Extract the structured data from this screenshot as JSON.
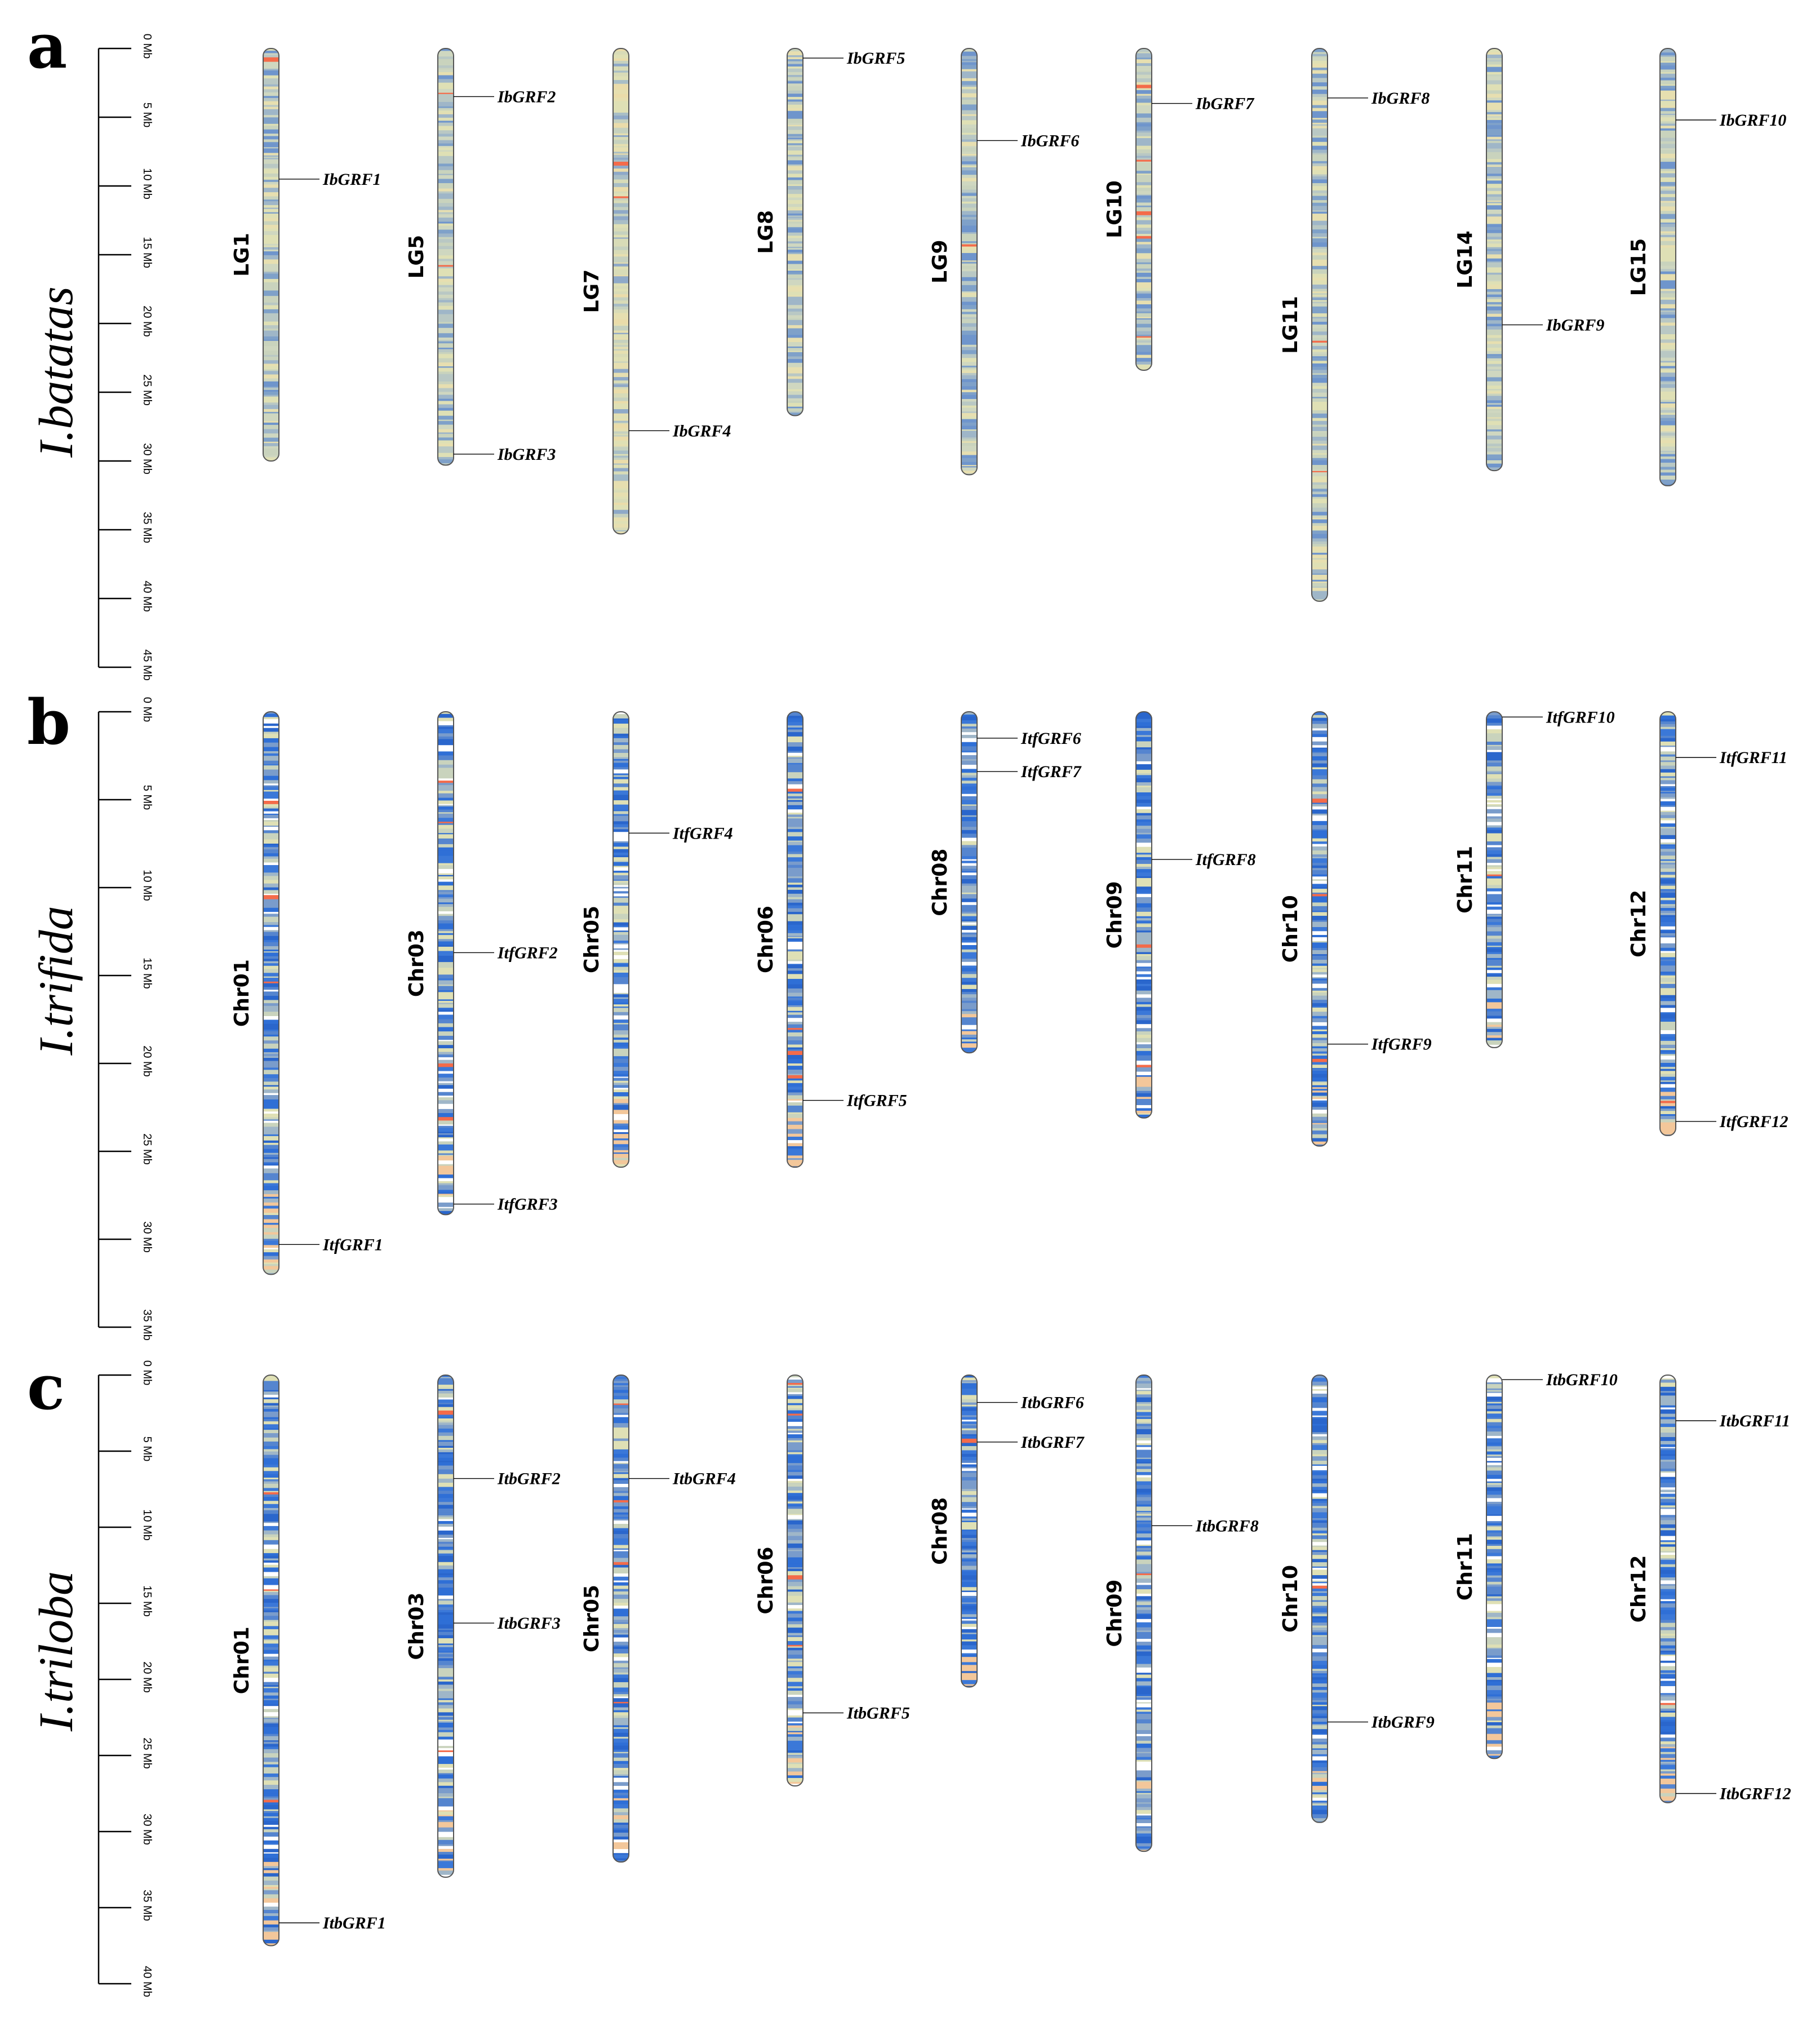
{
  "colors": {
    "low": "#2f6fd6",
    "mid": "#dfe0b5",
    "high": "#f46b4a",
    "outline": "#555555",
    "axis": "#000000"
  },
  "panels": [
    {
      "letter": "a",
      "species": "I.batatas",
      "max_mb": 45,
      "ticks": [
        "0 Mb",
        "5 Mb",
        "10 Mb",
        "15 Mb",
        "20 Mb",
        "25 Mb",
        "30 Mb",
        "35 Mb",
        "40 Mb",
        "45 Mb"
      ],
      "chromosomes": [
        {
          "name": "LG1",
          "length_mb": 30.0,
          "tone": "mixed",
          "genes": [
            {
              "name": "IbGRF1",
              "pos_mb": 9.5
            }
          ]
        },
        {
          "name": "LG5",
          "length_mb": 30.3,
          "tone": "mixed",
          "genes": [
            {
              "name": "IbGRF2",
              "pos_mb": 3.5
            },
            {
              "name": "IbGRF3",
              "pos_mb": 29.5
            }
          ]
        },
        {
          "name": "LG7",
          "length_mb": 35.3,
          "tone": "light",
          "genes": [
            {
              "name": "IbGRF4",
              "pos_mb": 27.8
            }
          ]
        },
        {
          "name": "LG8",
          "length_mb": 26.7,
          "tone": "mixed",
          "genes": [
            {
              "name": "IbGRF5",
              "pos_mb": 0.7
            }
          ]
        },
        {
          "name": "LG9",
          "length_mb": 31.0,
          "tone": "mixed",
          "genes": [
            {
              "name": "IbGRF6",
              "pos_mb": 6.7
            }
          ]
        },
        {
          "name": "LG10",
          "length_mb": 23.4,
          "tone": "mixed",
          "genes": [
            {
              "name": "IbGRF7",
              "pos_mb": 4.0
            }
          ]
        },
        {
          "name": "LG11",
          "length_mb": 40.2,
          "tone": "mixed",
          "genes": [
            {
              "name": "IbGRF8",
              "pos_mb": 3.6
            }
          ]
        },
        {
          "name": "LG14",
          "length_mb": 30.7,
          "tone": "mixed",
          "genes": [
            {
              "name": "IbGRF9",
              "pos_mb": 20.1
            }
          ]
        },
        {
          "name": "LG15",
          "length_mb": 31.8,
          "tone": "mixed",
          "genes": [
            {
              "name": "IbGRF10",
              "pos_mb": 5.2
            }
          ]
        }
      ]
    },
    {
      "letter": "b",
      "species": "I.trifida",
      "max_mb": 35,
      "ticks": [
        "0 Mb",
        "5 Mb",
        "10 Mb",
        "15 Mb",
        "20 Mb",
        "25 Mb",
        "30 Mb",
        "35 Mb"
      ],
      "chromosomes": [
        {
          "name": "Chr01",
          "length_mb": 32.0,
          "tone": "blue",
          "genes": [
            {
              "name": "ItfGRF1",
              "pos_mb": 30.3
            }
          ]
        },
        {
          "name": "Chr03",
          "length_mb": 28.6,
          "tone": "blue",
          "genes": [
            {
              "name": "ItfGRF2",
              "pos_mb": 13.7
            },
            {
              "name": "ItfGRF3",
              "pos_mb": 28.0
            }
          ]
        },
        {
          "name": "Chr05",
          "length_mb": 25.9,
          "tone": "blue",
          "genes": [
            {
              "name": "ItfGRF4",
              "pos_mb": 6.9
            }
          ]
        },
        {
          "name": "Chr06",
          "length_mb": 25.9,
          "tone": "blue",
          "genes": [
            {
              "name": "ItfGRF5",
              "pos_mb": 22.1
            }
          ]
        },
        {
          "name": "Chr08",
          "length_mb": 19.4,
          "tone": "blue",
          "genes": [
            {
              "name": "ItfGRF6",
              "pos_mb": 1.5
            },
            {
              "name": "ItfGRF7",
              "pos_mb": 3.4
            }
          ]
        },
        {
          "name": "Chr09",
          "length_mb": 23.1,
          "tone": "blue",
          "genes": [
            {
              "name": "ItfGRF8",
              "pos_mb": 8.4
            }
          ]
        },
        {
          "name": "Chr10",
          "length_mb": 24.7,
          "tone": "blue",
          "genes": [
            {
              "name": "ItfGRF9",
              "pos_mb": 18.9
            }
          ]
        },
        {
          "name": "Chr11",
          "length_mb": 19.1,
          "tone": "blue",
          "genes": [
            {
              "name": "ItfGRF10",
              "pos_mb": 0.3
            }
          ]
        },
        {
          "name": "Chr12",
          "length_mb": 24.1,
          "tone": "blue",
          "genes": [
            {
              "name": "ItfGRF11",
              "pos_mb": 2.6
            },
            {
              "name": "ItfGRF12",
              "pos_mb": 23.3
            }
          ]
        }
      ]
    },
    {
      "letter": "c",
      "species": "I.triloba",
      "max_mb": 40,
      "ticks": [
        "0 Mb",
        "5 Mb",
        "10 Mb",
        "15 Mb",
        "20 Mb",
        "25 Mb",
        "30 Mb",
        "35 Mb",
        "40 Mb"
      ],
      "chromosomes": [
        {
          "name": "Chr01",
          "length_mb": 37.5,
          "tone": "blue",
          "genes": [
            {
              "name": "ItbGRF1",
              "pos_mb": 36.0
            }
          ]
        },
        {
          "name": "Chr03",
          "length_mb": 33.0,
          "tone": "blue",
          "genes": [
            {
              "name": "ItbGRF2",
              "pos_mb": 6.8
            },
            {
              "name": "ItbGRF3",
              "pos_mb": 16.3
            }
          ]
        },
        {
          "name": "Chr05",
          "length_mb": 32.0,
          "tone": "blue",
          "genes": [
            {
              "name": "ItbGRF4",
              "pos_mb": 6.8
            }
          ]
        },
        {
          "name": "Chr06",
          "length_mb": 27.0,
          "tone": "blue",
          "genes": [
            {
              "name": "ItbGRF5",
              "pos_mb": 22.2
            }
          ]
        },
        {
          "name": "Chr08",
          "length_mb": 20.5,
          "tone": "blue",
          "genes": [
            {
              "name": "ItbGRF6",
              "pos_mb": 1.8
            },
            {
              "name": "ItbGRF7",
              "pos_mb": 4.4
            }
          ]
        },
        {
          "name": "Chr09",
          "length_mb": 31.3,
          "tone": "blue",
          "genes": [
            {
              "name": "ItbGRF8",
              "pos_mb": 9.9
            }
          ]
        },
        {
          "name": "Chr10",
          "length_mb": 29.4,
          "tone": "blue",
          "genes": [
            {
              "name": "ItbGRF9",
              "pos_mb": 22.8
            }
          ]
        },
        {
          "name": "Chr11",
          "length_mb": 25.2,
          "tone": "blue",
          "genes": [
            {
              "name": "ItbGRF10",
              "pos_mb": 0.3
            }
          ]
        },
        {
          "name": "Chr12",
          "length_mb": 28.1,
          "tone": "blue",
          "genes": [
            {
              "name": "ItbGRF11",
              "pos_mb": 3.0
            },
            {
              "name": "ItbGRF12",
              "pos_mb": 27.5
            }
          ]
        }
      ]
    }
  ]
}
